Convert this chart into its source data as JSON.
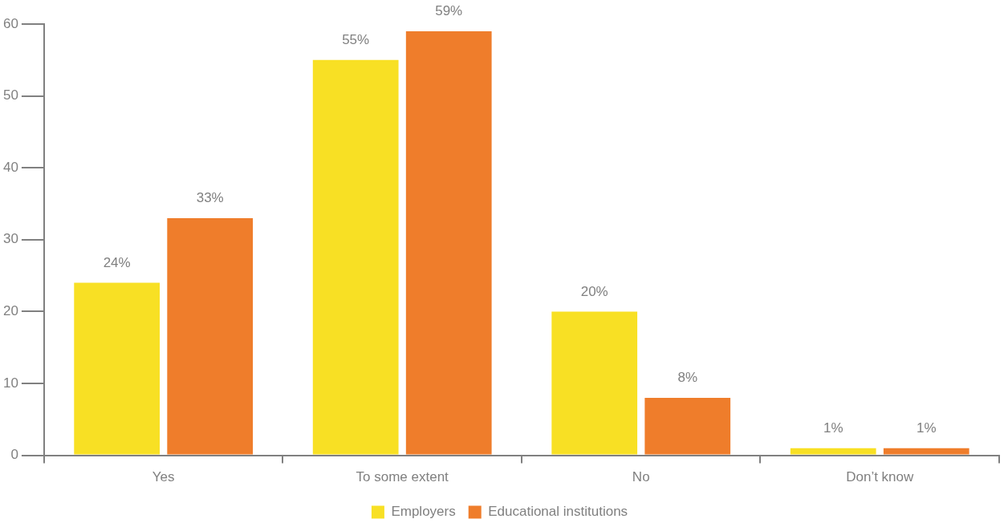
{
  "chart_data": {
    "type": "bar",
    "categories": [
      "Yes",
      "To some extent",
      "No",
      "Don’t know"
    ],
    "series": [
      {
        "name": "Employers",
        "color": "#f8e024",
        "values": [
          24,
          55,
          20,
          1
        ],
        "value_labels": [
          "24%",
          "55%",
          "20%",
          "1%"
        ]
      },
      {
        "name": "Educational institutions",
        "color": "#ef7d2b",
        "values": [
          33,
          59,
          8,
          1
        ],
        "value_labels": [
          "33%",
          "59%",
          "8%",
          "1%"
        ]
      }
    ],
    "ylim": [
      0,
      60
    ],
    "yticks": [
      0,
      10,
      20,
      30,
      40,
      50,
      60
    ],
    "grid": false,
    "legend": "bottom"
  }
}
